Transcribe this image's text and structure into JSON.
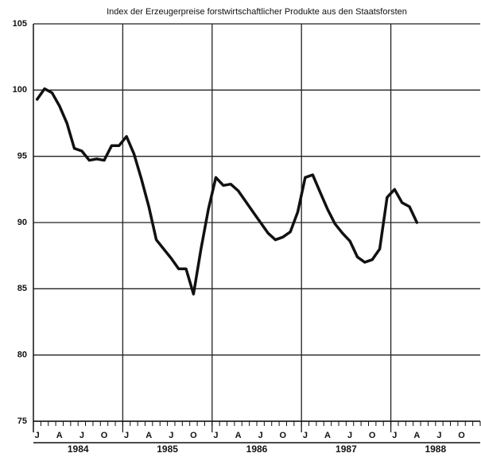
{
  "chart_data": {
    "type": "line",
    "title": "Index der Erzeugerpreise forstwirtschaftlicher Produkte aus den Staatsforsten",
    "categories": [
      "J",
      null,
      null,
      "A",
      null,
      null,
      "J",
      null,
      null,
      "O",
      null,
      null,
      "J",
      null,
      null,
      "A",
      null,
      null,
      "J",
      null,
      null,
      "O",
      null,
      null,
      "J",
      null,
      null,
      "A",
      null,
      null,
      "J",
      null,
      null,
      "O",
      null,
      null,
      "J",
      null,
      null,
      "A",
      null,
      null,
      "J",
      null,
      null,
      "O",
      null,
      null,
      "J",
      null,
      null,
      "A",
      null,
      null,
      "J",
      null,
      null,
      "O",
      null,
      null
    ],
    "year_labels": [
      "1984",
      "1985",
      "1986",
      "1987",
      "1988"
    ],
    "series": [
      {
        "color": "#111111",
        "values": [
          99.3,
          100.1,
          99.8,
          98.8,
          97.5,
          95.6,
          95.4,
          94.7,
          94.8,
          94.7,
          95.8,
          95.8,
          96.5,
          95.2,
          93.3,
          91.2,
          88.7,
          88.0,
          87.3,
          86.5,
          86.5,
          84.6,
          88.0,
          91.0,
          93.4,
          92.8,
          92.9,
          92.4,
          91.6,
          90.8,
          90.0,
          89.2,
          88.7,
          88.9,
          89.3,
          90.8,
          93.4,
          93.6,
          92.3,
          91.0,
          89.9,
          89.2,
          88.6,
          87.4,
          87.0,
          87.2,
          88.0,
          91.9,
          92.5,
          91.5,
          91.2,
          90.0,
          null,
          null,
          null,
          null,
          null,
          null,
          null,
          null
        ]
      }
    ],
    "ylim": [
      75,
      105
    ],
    "yticks": [
      75,
      80,
      85,
      90,
      95,
      100,
      105
    ],
    "grid": true
  }
}
